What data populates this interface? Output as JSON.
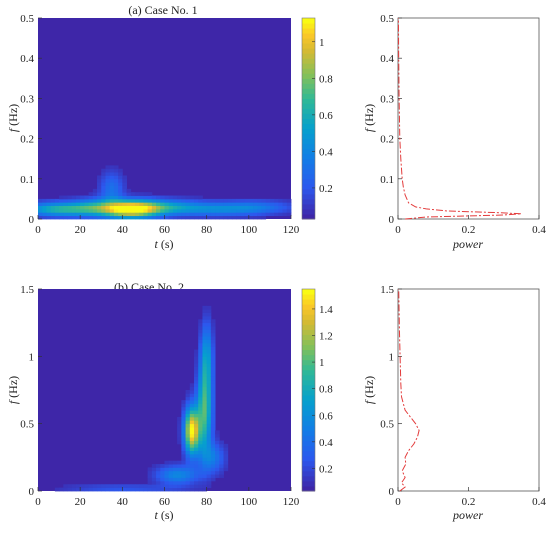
{
  "chart_data": [
    {
      "type": "heatmap",
      "title": "(a) Case No. 1",
      "xlabel_var": "t",
      "xlabel_unit": " (s)",
      "ylabel_var": "f",
      "ylabel_unit": " (Hz)",
      "xlim": [
        0,
        120
      ],
      "ylim": [
        0,
        0.5
      ],
      "xticks": [
        "0",
        "20",
        "40",
        "60",
        "80",
        "100",
        "120"
      ],
      "yticks": [
        "0",
        "0.1",
        "0.2",
        "0.3",
        "0.4",
        "0.5"
      ],
      "colorbar": {
        "range": [
          0.03,
          1.13
        ],
        "ticks": [
          "0.2",
          "0.4",
          "0.6",
          "0.8",
          "1"
        ]
      },
      "hotspots": [
        {
          "t": 10,
          "f": 0.025,
          "amp": 0.55,
          "st": 12,
          "sf": 0.012
        },
        {
          "t": 27,
          "f": 0.03,
          "amp": 0.35,
          "st": 8,
          "sf": 0.015
        },
        {
          "t": 44,
          "f": 0.025,
          "amp": 1.0,
          "st": 9,
          "sf": 0.015
        },
        {
          "t": 60,
          "f": 0.03,
          "amp": 0.4,
          "st": 12,
          "sf": 0.013
        },
        {
          "t": 85,
          "f": 0.025,
          "amp": 0.3,
          "st": 14,
          "sf": 0.012
        },
        {
          "t": 105,
          "f": 0.03,
          "amp": 0.22,
          "st": 12,
          "sf": 0.012
        },
        {
          "t": 35,
          "f": 0.075,
          "amp": 0.25,
          "st": 4,
          "sf": 0.03
        }
      ]
    },
    {
      "type": "line",
      "xlabel": "power",
      "ylabel_var": "f",
      "ylabel_unit": " (Hz)",
      "xlim": [
        0,
        0.4
      ],
      "ylim": [
        0,
        0.5
      ],
      "xticks": [
        "0",
        "0.2",
        "0.4"
      ],
      "yticks": [
        "0",
        "0.1",
        "0.2",
        "0.3",
        "0.4",
        "0.5"
      ],
      "series": [
        {
          "color": "#e33b3b",
          "f": [
            0.0,
            0.005,
            0.01,
            0.013,
            0.016,
            0.02,
            0.025,
            0.03,
            0.04,
            0.06,
            0.08,
            0.1,
            0.15,
            0.2,
            0.3,
            0.4,
            0.5
          ],
          "power": [
            0.02,
            0.08,
            0.3,
            0.35,
            0.28,
            0.14,
            0.08,
            0.05,
            0.03,
            0.02,
            0.015,
            0.012,
            0.008,
            0.005,
            0.003,
            0.002,
            0.001
          ]
        }
      ]
    },
    {
      "type": "heatmap",
      "title": "(b) Case No. 2",
      "xlabel_var": "t",
      "xlabel_unit": " (s)",
      "ylabel_var": "f",
      "ylabel_unit": " (Hz)",
      "xlim": [
        0,
        120
      ],
      "ylim": [
        0,
        1.5
      ],
      "xticks": [
        "0",
        "20",
        "40",
        "60",
        "80",
        "100",
        "120"
      ],
      "yticks": [
        "0",
        "0.5",
        "1",
        "1.5"
      ],
      "colorbar": {
        "range": [
          0.03,
          1.55
        ],
        "ticks": [
          "0.2",
          "0.4",
          "0.6",
          "0.8",
          "1",
          "1.2",
          "1.4"
        ]
      },
      "hotspots": [
        {
          "t": 73,
          "f": 0.45,
          "amp": 1.3,
          "st": 2.5,
          "sf": 0.12
        },
        {
          "t": 79,
          "f": 0.6,
          "amp": 0.8,
          "st": 2.5,
          "sf": 0.22
        },
        {
          "t": 80,
          "f": 1.0,
          "amp": 0.5,
          "st": 2.0,
          "sf": 0.18
        },
        {
          "t": 66,
          "f": 0.12,
          "amp": 0.45,
          "st": 7,
          "sf": 0.05
        },
        {
          "t": 83,
          "f": 0.25,
          "amp": 0.35,
          "st": 4,
          "sf": 0.08
        },
        {
          "t": 40,
          "f": 0.02,
          "amp": 0.2,
          "st": 20,
          "sf": 0.02
        }
      ]
    },
    {
      "type": "line",
      "xlabel": "power",
      "ylabel_var": "f",
      "ylabel_unit": " (Hz)",
      "xlim": [
        0,
        0.4
      ],
      "ylim": [
        0,
        1.5
      ],
      "xticks": [
        "0",
        "0.2",
        "0.4"
      ],
      "yticks": [
        "0",
        "0.5",
        "1",
        "1.5"
      ],
      "series": [
        {
          "color": "#e33b3b",
          "f": [
            0.0,
            0.03,
            0.06,
            0.1,
            0.15,
            0.2,
            0.25,
            0.3,
            0.35,
            0.4,
            0.45,
            0.5,
            0.55,
            0.6,
            0.7,
            0.8,
            1.0,
            1.2,
            1.5
          ],
          "power": [
            0.005,
            0.02,
            0.01,
            0.02,
            0.012,
            0.022,
            0.02,
            0.03,
            0.045,
            0.055,
            0.06,
            0.05,
            0.035,
            0.02,
            0.01,
            0.008,
            0.006,
            0.004,
            0.002
          ]
        }
      ]
    }
  ]
}
